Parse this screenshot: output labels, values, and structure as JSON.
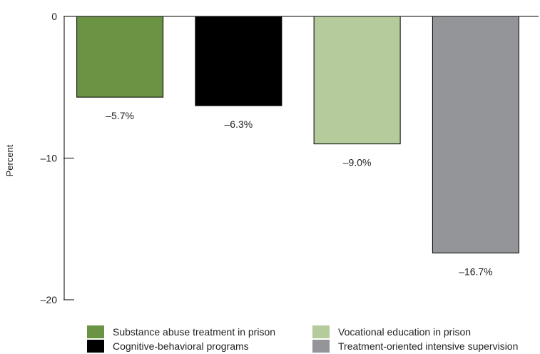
{
  "chart_data": {
    "type": "bar",
    "categories": [
      "Substance abuse treatment in prison",
      "Cognitive-behavioral programs",
      "Vocational education in prison",
      "Treatment-oriented intensive supervision"
    ],
    "values": [
      -5.7,
      -6.3,
      -9.0,
      -16.7
    ],
    "value_labels": [
      "–5.7%",
      "–6.3%",
      "–9.0%",
      "–16.7%"
    ],
    "colors": [
      "#6a9444",
      "#000000",
      "#b5cb9b",
      "#939598"
    ],
    "title": "",
    "xlabel": "",
    "ylabel": "Percent",
    "ylim": [
      -20,
      0
    ],
    "yticks": [
      0,
      -10,
      -20
    ],
    "ytick_labels": [
      "0",
      "–10",
      "–20"
    ],
    "grid": false,
    "legend_position": "bottom"
  },
  "legend": {
    "items": [
      {
        "label": "Substance abuse treatment in prison",
        "color": "#6a9444"
      },
      {
        "label": "Cognitive-behavioral programs",
        "color": "#000000"
      },
      {
        "label": "Vocational education in prison",
        "color": "#b5cb9b"
      },
      {
        "label": "Treatment-oriented intensive supervision",
        "color": "#939598"
      }
    ]
  }
}
